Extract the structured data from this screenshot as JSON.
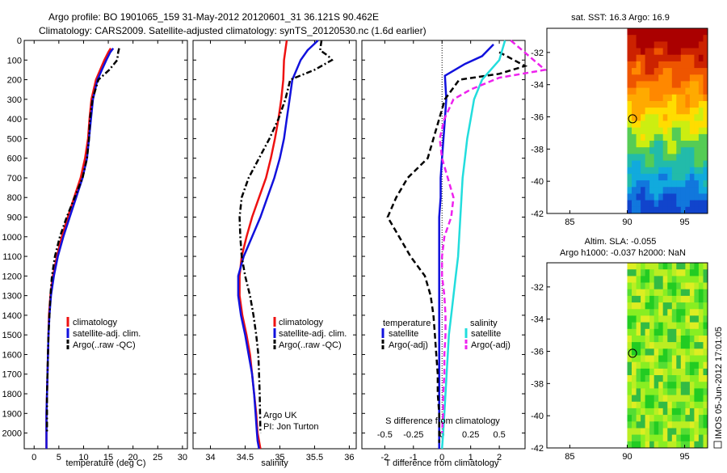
{
  "header": {
    "title_line1": "Argo profile: BO 1901065_159 31-May-2012 20120601_31 36.121S 90.462E",
    "title_line2": "Climatology: CARS2009. Satellite-adjusted climatology: synTS_20120530.nc (1.6d earlier)"
  },
  "colors": {
    "climatology": "#ee1111",
    "satellite": "#1111dd",
    "argo": "#000000",
    "satellite_cyan": "#22dddd",
    "argo_adj": "#ee22ee"
  },
  "chart_data": [
    {
      "type": "line",
      "id": "temperature",
      "xlabel": "temperature (deg C)",
      "ylabel": "",
      "xlim": [
        -2,
        31
      ],
      "ylim": [
        2080,
        0
      ],
      "xticks": [
        0,
        5,
        10,
        15,
        20,
        25,
        30
      ],
      "yticks": [
        0,
        100,
        200,
        300,
        400,
        500,
        600,
        700,
        800,
        900,
        1000,
        1100,
        1200,
        1300,
        1400,
        1500,
        1600,
        1700,
        1800,
        1900,
        2000
      ],
      "legend": [
        "climatology",
        "satellite-adj. clim.",
        "Argo(..raw -QC)"
      ],
      "series": [
        {
          "name": "climatology",
          "style": "solid",
          "color": "#ee1111",
          "x": [
            15.5,
            15,
            14.2,
            12.5,
            11.6,
            11.2,
            10.9,
            10.3,
            9.4,
            8.1,
            6.8,
            5.6,
            4.6,
            3.8,
            3.3,
            3.0,
            2.9,
            2.8,
            2.7,
            2.6,
            2.5,
            2.5,
            2.5
          ],
          "y": [
            40,
            60,
            100,
            200,
            300,
            400,
            500,
            600,
            700,
            800,
            900,
            1000,
            1100,
            1200,
            1300,
            1400,
            1500,
            1600,
            1700,
            1800,
            1900,
            2000,
            2080
          ]
        },
        {
          "name": "satellite-adj. clim.",
          "style": "solid",
          "color": "#1111dd",
          "x": [
            16,
            15.4,
            14.6,
            12.8,
            11.9,
            11.5,
            11.1,
            10.7,
            9.8,
            8.5,
            7.2,
            5.9,
            4.8,
            4.0,
            3.4,
            3.1,
            2.9,
            2.8,
            2.7,
            2.6,
            2.5,
            2.5,
            2.5
          ],
          "y": [
            40,
            60,
            100,
            200,
            300,
            400,
            500,
            600,
            700,
            800,
            900,
            1000,
            1100,
            1200,
            1300,
            1400,
            1500,
            1600,
            1700,
            1800,
            1900,
            2000,
            2080
          ]
        },
        {
          "name": "Argo(..raw -QC)",
          "style": "dashdot",
          "color": "#000000",
          "x": [
            17.2,
            17.0,
            16.8,
            15.2,
            13.0,
            11.8,
            11.3,
            11.1,
            10.7,
            9.8,
            8.2,
            6.6,
            5.2,
            4.2,
            3.6,
            3.3,
            3.1,
            2.9,
            2.8,
            2.7,
            2.6,
            2.6,
            2.6
          ],
          "y": [
            40,
            60,
            100,
            150,
            200,
            300,
            400,
            500,
            600,
            700,
            800,
            900,
            1000,
            1100,
            1200,
            1300,
            1400,
            1500,
            1600,
            1700,
            1800,
            1900,
            2000
          ]
        }
      ]
    },
    {
      "type": "line",
      "id": "salinity",
      "xlabel": "salinity",
      "xlim": [
        33.75,
        36.1
      ],
      "ylim": [
        2080,
        0
      ],
      "xticks": [
        34,
        34.5,
        35,
        35.5,
        36
      ],
      "xticklabels": [
        "34",
        "34.5",
        "35",
        "35.5",
        "36"
      ],
      "legend": [
        "climatology",
        "satellite-adj. clim.",
        "Argo(..raw -QC)"
      ],
      "annotation": [
        "Argo UK",
        "PI: Jon Turton"
      ],
      "series": [
        {
          "name": "climatology",
          "style": "solid",
          "color": "#ee1111",
          "x": [
            35.1,
            35.08,
            35.06,
            35.05,
            35.02,
            34.98,
            34.93,
            34.87,
            34.8,
            34.7,
            34.6,
            34.52,
            34.45,
            34.42,
            34.42,
            34.46,
            34.52,
            34.57,
            34.6,
            34.63,
            34.66,
            34.68,
            34.7,
            34.71,
            34.72
          ],
          "y": [
            0,
            50,
            100,
            200,
            300,
            400,
            500,
            600,
            700,
            800,
            900,
            1000,
            1100,
            1200,
            1300,
            1400,
            1500,
            1600,
            1700,
            1800,
            1900,
            2000,
            2040,
            2060,
            2080
          ]
        },
        {
          "name": "satellite-adj. clim.",
          "style": "solid",
          "color": "#1111dd",
          "x": [
            35.55,
            35.4,
            35.3,
            35.18,
            35.14,
            35.1,
            35.06,
            35.0,
            34.92,
            34.82,
            34.72,
            34.6,
            34.48,
            34.4,
            34.4,
            34.44,
            34.5,
            34.55,
            34.6,
            34.63,
            34.65,
            34.67,
            34.68,
            34.69,
            34.7
          ],
          "y": [
            0,
            50,
            100,
            200,
            300,
            400,
            500,
            600,
            700,
            800,
            900,
            1000,
            1100,
            1200,
            1300,
            1400,
            1500,
            1600,
            1700,
            1800,
            1900,
            2000,
            2040,
            2060,
            2080
          ]
        },
        {
          "name": "Argo(..raw -QC)",
          "style": "dashdot",
          "color": "#000000",
          "x": [
            35.6,
            35.58,
            35.7,
            35.75,
            35.5,
            35.15,
            35.08,
            34.98,
            34.85,
            34.7,
            34.55,
            34.45,
            34.42,
            34.43,
            34.45,
            34.5,
            34.57,
            34.62,
            34.66,
            34.69,
            34.7,
            34.71,
            34.72
          ],
          "y": [
            0,
            50,
            80,
            100,
            150,
            200,
            300,
            400,
            500,
            600,
            700,
            800,
            900,
            1000,
            1100,
            1200,
            1300,
            1400,
            1500,
            1600,
            1700,
            1800,
            2000
          ]
        }
      ]
    },
    {
      "type": "line",
      "id": "difference",
      "xlabel": "T difference from climatology",
      "top_label": "S difference from climatology",
      "xlim": [
        -2.8,
        2.9
      ],
      "ylim": [
        2080,
        0
      ],
      "xticks": [
        -2,
        -1,
        0,
        1,
        2
      ],
      "xticklabels": [
        "-2",
        "-1",
        "0",
        "1",
        "2"
      ],
      "sticks": [
        "-0.5",
        "-0.25",
        "0",
        "0.25",
        "0.5"
      ],
      "legend_temperature_title": "temperature",
      "legend_salinity_title": "salinity",
      "legend": [
        "satellite",
        "Argo(-adj)",
        "satellite",
        "Argo(-adj)"
      ],
      "series": [
        {
          "name": "T satellite",
          "style": "solid",
          "color": "#1111dd",
          "x": [
            1.8,
            1.4,
            0.8,
            0.1,
            0.15,
            0.1,
            0.05,
            0.0,
            -0.05,
            -0.05,
            -0.1,
            -0.1,
            -0.1,
            -0.1,
            -0.1,
            -0.1,
            -0.1,
            -0.1,
            -0.1,
            -0.1,
            -0.1,
            -0.1,
            -0.1
          ],
          "y": [
            20,
            80,
            120,
            180,
            300,
            400,
            500,
            600,
            700,
            800,
            900,
            1000,
            1100,
            1200,
            1300,
            1400,
            1500,
            1600,
            1700,
            1800,
            1900,
            2000,
            2080
          ]
        },
        {
          "name": "T Argo(-adj)",
          "style": "dashed",
          "color": "#000000",
          "x": [
            2.0,
            2.9,
            2.0,
            0.6,
            0.1,
            -0.1,
            -0.3,
            -0.5,
            -1.2,
            -1.6,
            -1.9,
            -1.5,
            -1.1,
            -0.6,
            -0.4,
            -0.3,
            -0.25,
            -0.2,
            -0.15,
            -0.15,
            -0.1,
            -0.1,
            -0.1
          ],
          "y": [
            60,
            130,
            170,
            200,
            300,
            400,
            500,
            600,
            700,
            800,
            900,
            1000,
            1100,
            1200,
            1300,
            1400,
            1500,
            1600,
            1700,
            1800,
            1900,
            2000,
            2050
          ]
        },
        {
          "name": "S satellite",
          "style": "solid",
          "color": "#22dddd",
          "x": [
            0.55,
            0.5,
            0.35,
            0.28,
            0.25,
            0.22,
            0.2,
            0.18,
            0.17,
            0.16,
            0.15,
            0.14,
            0.12,
            0.1,
            0.08,
            0.06,
            0.05,
            0.04,
            0.03,
            0.02,
            0.01,
            0.0
          ],
          "y": [
            0,
            100,
            200,
            300,
            400,
            500,
            600,
            700,
            800,
            900,
            1000,
            1100,
            1200,
            1300,
            1400,
            1500,
            1600,
            1700,
            1800,
            1900,
            2000,
            2080
          ]
        },
        {
          "name": "S Argo(-adj)",
          "style": "dashed",
          "color": "#ee22ee",
          "x": [
            0.6,
            0.9,
            0.5,
            0.25,
            0.1,
            0.02,
            -0.02,
            0.0,
            0.05,
            0.1,
            0.08,
            0.02,
            0.0,
            0.0,
            0.02,
            0.03,
            0.03,
            0.02,
            0.02,
            0.01,
            0.01,
            0.0
          ],
          "y": [
            0,
            150,
            190,
            250,
            300,
            400,
            500,
            600,
            700,
            800,
            900,
            1000,
            1100,
            1200,
            1300,
            1400,
            1500,
            1600,
            1700,
            1800,
            1900,
            2000
          ]
        }
      ]
    },
    {
      "type": "heatmap",
      "id": "sst_map",
      "title": "sat. SST: 16.3 Argo: 16.9",
      "xticks": [
        85,
        90,
        95
      ],
      "yticks": [
        -32,
        -34,
        -36,
        -38,
        -40,
        -42
      ],
      "xlim": [
        83,
        97
      ],
      "ylim": [
        -42,
        -30.5
      ],
      "marker": {
        "lon": 90.462,
        "lat": -36.121
      }
    },
    {
      "type": "heatmap",
      "id": "sla_map",
      "title": "Altim. SLA: -0.055",
      "subtitle": "Argo h1000: -0.037 h2000: NaN",
      "xticks": [
        85,
        90,
        95
      ],
      "yticks": [
        -32,
        -34,
        -36,
        -38,
        -40,
        -42
      ],
      "xlim": [
        83,
        97
      ],
      "ylim": [
        -42,
        -30.5
      ],
      "marker": {
        "lon": 90.462,
        "lat": -36.121
      }
    }
  ],
  "footer": {
    "credit": "IMOS 05-Jun-2012 17:01:05"
  }
}
